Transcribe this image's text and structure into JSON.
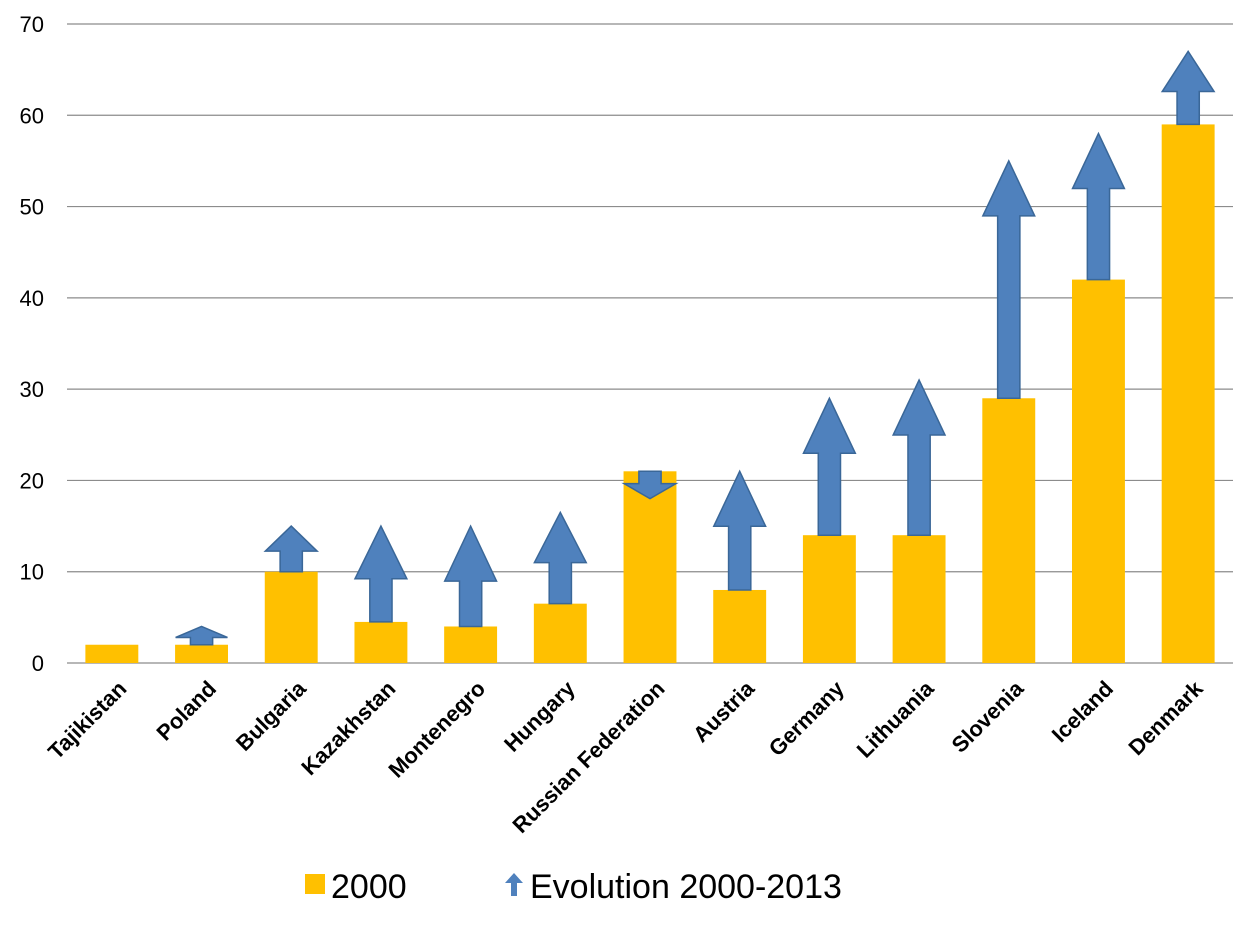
{
  "chart_data": {
    "type": "bar",
    "title": "",
    "xlabel": "",
    "ylabel": "",
    "ylim": [
      0,
      70
    ],
    "yticks": [
      0,
      10,
      20,
      30,
      40,
      50,
      60,
      70
    ],
    "grid": true,
    "legend_position": "bottom",
    "categories": [
      "Tajikistan",
      "Poland",
      "Bulgaria",
      "Kazakhstan",
      "Montenegro",
      "Hungary",
      "Russian Federation",
      "Austria",
      "Germany",
      "Lithuania",
      "Slovenia",
      "Iceland",
      "Denmark"
    ],
    "series": [
      {
        "name": "2000",
        "type": "bar",
        "color": "#FFC000",
        "values": [
          2,
          2,
          10,
          4.5,
          4,
          6.5,
          21,
          8,
          14,
          14,
          29,
          42,
          59
        ]
      },
      {
        "name": "Evolution 2000-2013",
        "type": "arrow",
        "color": "#4F81BD",
        "from": [
          2,
          2,
          10,
          4.5,
          4,
          6.5,
          21,
          8,
          14,
          14,
          29,
          42,
          59
        ],
        "to": [
          2,
          4,
          15,
          15,
          15,
          16.5,
          18,
          21,
          29,
          31,
          55,
          58,
          67
        ]
      }
    ]
  }
}
